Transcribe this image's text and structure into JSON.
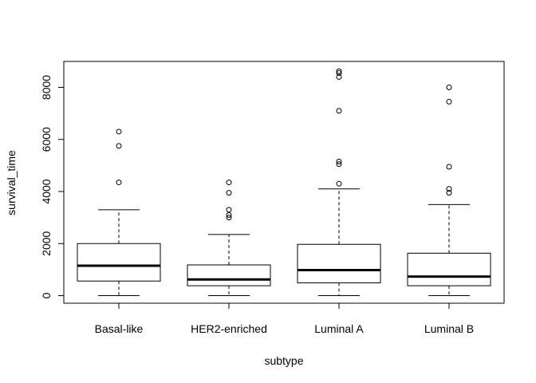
{
  "chart_data": {
    "type": "boxplot",
    "title": "",
    "xlabel": "subtype",
    "ylabel": "survival_time",
    "ylim": [
      -300,
      9000
    ],
    "yticks": [
      0,
      2000,
      4000,
      6000,
      8000
    ],
    "ytick_labels": [
      "0",
      "2000",
      "4000",
      "6000",
      "8000"
    ],
    "grid": false,
    "categories": [
      "Basal-like",
      "HER2-enriched",
      "Luminal A",
      "Luminal B"
    ],
    "boxes": [
      {
        "category": "Basal-like",
        "whisker_low": 0,
        "q1": 560,
        "median": 1150,
        "q3": 2000,
        "whisker_high": 3300,
        "outliers": [
          4350,
          5750,
          6300
        ]
      },
      {
        "category": "HER2-enriched",
        "whisker_low": 0,
        "q1": 380,
        "median": 620,
        "q3": 1180,
        "whisker_high": 2350,
        "outliers": [
          3000,
          3100,
          3300,
          3950,
          4350
        ]
      },
      {
        "category": "Luminal A",
        "whisker_low": 0,
        "q1": 490,
        "median": 980,
        "q3": 1970,
        "whisker_high": 4100,
        "outliers": [
          4300,
          5050,
          5150,
          7100,
          8400,
          8550,
          8620
        ]
      },
      {
        "category": "Luminal B",
        "whisker_low": 0,
        "q1": 380,
        "median": 730,
        "q3": 1630,
        "whisker_high": 3500,
        "outliers": [
          3950,
          4100,
          4950,
          7450,
          8000
        ]
      }
    ]
  }
}
